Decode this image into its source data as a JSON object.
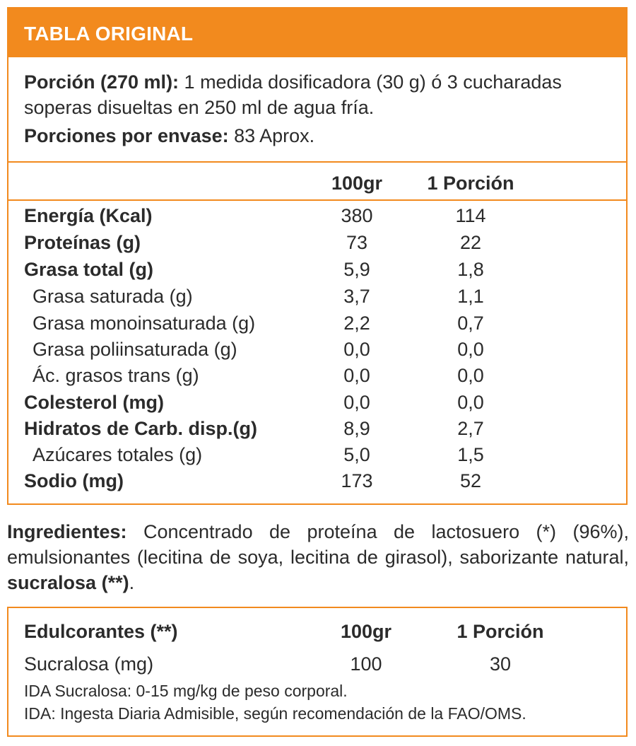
{
  "table": {
    "title": "TABLA ORIGINAL",
    "serving_label": "Porción (270 ml):",
    "serving_text": " 1 medida dosificadora (30 g) ó 3 cucharadas soperas disueltas en 250 ml de agua fría.",
    "servings_label": "Porciones por envase:",
    "servings_text": " 83 Aprox.",
    "col_100": "100gr",
    "col_portion": "1 Porción",
    "rows": [
      {
        "label": "Energía (Kcal)",
        "v100": "380",
        "vpor": "114"
      },
      {
        "label": "Proteínas (g)",
        "v100": "73",
        "vpor": "22"
      },
      {
        "label": "Grasa total (g)",
        "v100": "5,9",
        "vpor": "1,8"
      },
      {
        "label": "Grasa saturada (g)",
        "v100": "3,7",
        "vpor": "1,1"
      },
      {
        "label": "Grasa monoinsaturada (g)",
        "v100": "2,2",
        "vpor": "0,7"
      },
      {
        "label": "Grasa poliinsaturada (g)",
        "v100": "0,0",
        "vpor": "0,0"
      },
      {
        "label": "Ác. grasos trans (g)",
        "v100": "0,0",
        "vpor": "0,0"
      },
      {
        "label": "Colesterol (mg)",
        "v100": "0,0",
        "vpor": "0,0"
      },
      {
        "label": "Hidratos de Carb. disp.(g)",
        "v100": "8,9",
        "vpor": "2,7"
      },
      {
        "label": "Azúcares totales (g)",
        "v100": "5,0",
        "vpor": "1,5"
      },
      {
        "label": "Sodio (mg)",
        "v100": "173",
        "vpor": "52"
      }
    ]
  },
  "ingredients": {
    "label": "Ingredientes:",
    "text": " Concentrado de proteína de lactosuero (*) (96%), emulsionantes (lecitina de soya, lecitina de girasol), saborizante natural, ",
    "bold_tail": "sucralosa (**)",
    "end": "."
  },
  "sweeteners": {
    "header_label": "Edulcorantes (**)",
    "col_100": "100gr",
    "col_portion": "1 Porción",
    "row_label": "Sucralosa (mg)",
    "row_100": "100",
    "row_portion": "30",
    "note1": "IDA Sucralosa: 0-15 mg/kg de peso corporal.",
    "note2": "IDA: Ingesta Diaria Admisible, según recomendación de la FAO/OMS."
  },
  "colors": {
    "accent": "#f28a1e",
    "text": "#2b2b2b"
  }
}
